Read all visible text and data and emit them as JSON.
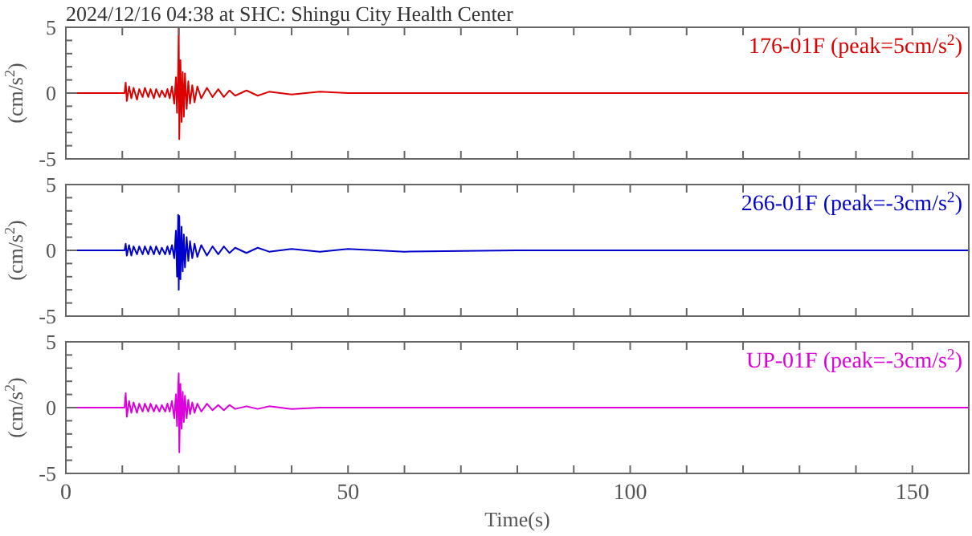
{
  "chart_data": [
    {
      "type": "line",
      "title": "2024/12/16 04:38 at SHC: Shingu City Health Center",
      "ylabel": "(cm/s$^{2}$)",
      "xlim": [
        0,
        160
      ],
      "xticks": [
        0,
        {
          "value": 10,
          "label": null
        },
        {
          "value": 20,
          "label": null
        },
        {
          "value": 30,
          "label": null
        },
        {
          "value": 40,
          "label": null
        },
        50,
        {
          "value": 60,
          "label": null
        },
        {
          "value": 70,
          "label": null
        },
        {
          "value": 80,
          "label": null
        },
        {
          "value": 90,
          "label": null
        },
        100,
        {
          "value": 110,
          "label": null
        },
        {
          "value": 120,
          "label": null
        },
        {
          "value": 130,
          "label": null
        },
        {
          "value": 140,
          "label": null
        },
        150,
        {
          "value": 160,
          "label": null
        }
      ],
      "ylim": [
        -5,
        5
      ],
      "yticks": [
        -5,
        {
          "value": -4,
          "label": null
        },
        {
          "value": -3,
          "label": null
        },
        {
          "value": -2,
          "label": null
        },
        {
          "value": -1,
          "label": null
        },
        0,
        {
          "value": 1,
          "label": null
        },
        {
          "value": 2,
          "label": null
        },
        {
          "value": 3,
          "label": null
        },
        {
          "value": 4,
          "label": null
        },
        5
      ],
      "tick_labels": "y",
      "legend": "top right",
      "marker": "none",
      "series": [
        {
          "name": "176-01F (peak=5cm/s$^{2}$)",
          "color": "#dd0000",
          "x": [
            0,
            10.4,
            10.6,
            10.8,
            11.2,
            11.6,
            12,
            12.6,
            13,
            13.6,
            14,
            14.6,
            15,
            15.6,
            16,
            16.6,
            17,
            17.6,
            18,
            18.4,
            18.8,
            19.2,
            19.5,
            19.7,
            19.9,
            20.0,
            20.1,
            20.3,
            20.5,
            20.7,
            20.9,
            21.1,
            21.4,
            21.7,
            22,
            22.4,
            22.8,
            23.3,
            24,
            25,
            26,
            27,
            28,
            29,
            30,
            32,
            34,
            36,
            40,
            45,
            50,
            60,
            80,
            100,
            130,
            160
          ],
          "values": [
            0,
            0,
            0.8,
            -0.6,
            0.5,
            -0.4,
            0.4,
            -0.5,
            0.3,
            -0.3,
            0.4,
            -0.3,
            0.3,
            -0.4,
            0.3,
            -0.3,
            0.2,
            -0.3,
            0.3,
            -0.4,
            0.5,
            -0.8,
            1.2,
            -1.5,
            1.8,
            5,
            -3.5,
            2.5,
            -2.2,
            1.6,
            -1.8,
            1.5,
            -1.2,
            0.9,
            -0.8,
            0.6,
            -0.7,
            0.5,
            -0.4,
            0.4,
            -0.3,
            0.3,
            -0.3,
            0.2,
            -0.2,
            0.2,
            -0.2,
            0.1,
            -0.1,
            0.1,
            0,
            0,
            0,
            0,
            0,
            0
          ]
        }
      ]
    },
    {
      "type": "line",
      "ylabel": "(cm/s$^{2}$)",
      "xlim": [
        0,
        160
      ],
      "xticks": [
        0,
        {
          "value": 10,
          "label": null
        },
        {
          "value": 20,
          "label": null
        },
        {
          "value": 30,
          "label": null
        },
        {
          "value": 40,
          "label": null
        },
        50,
        {
          "value": 60,
          "label": null
        },
        {
          "value": 70,
          "label": null
        },
        {
          "value": 80,
          "label": null
        },
        {
          "value": 90,
          "label": null
        },
        100,
        {
          "value": 110,
          "label": null
        },
        {
          "value": 120,
          "label": null
        },
        {
          "value": 130,
          "label": null
        },
        {
          "value": 140,
          "label": null
        },
        150,
        {
          "value": 160,
          "label": null
        }
      ],
      "ylim": [
        -5,
        5
      ],
      "yticks": [
        -5,
        {
          "value": -4,
          "label": null
        },
        {
          "value": -3,
          "label": null
        },
        {
          "value": -2,
          "label": null
        },
        {
          "value": -1,
          "label": null
        },
        0,
        {
          "value": 1,
          "label": null
        },
        {
          "value": 2,
          "label": null
        },
        {
          "value": 3,
          "label": null
        },
        {
          "value": 4,
          "label": null
        },
        5
      ],
      "tick_labels": "y",
      "legend": "top right",
      "marker": "none",
      "series": [
        {
          "name": "266-01F (peak=-3cm/s$^{2}$)",
          "color": "#0000cc",
          "x": [
            0,
            10.4,
            10.6,
            10.8,
            11.2,
            11.6,
            12,
            12.6,
            13,
            13.6,
            14,
            14.6,
            15,
            15.6,
            16,
            16.6,
            17,
            17.6,
            18,
            18.4,
            18.8,
            19.2,
            19.5,
            19.7,
            19.9,
            20.0,
            20.1,
            20.3,
            20.5,
            20.7,
            20.9,
            21.1,
            21.4,
            21.7,
            22,
            22.4,
            22.8,
            23.3,
            24,
            25,
            26,
            27,
            28,
            29,
            30,
            32,
            34,
            36,
            40,
            45,
            50,
            60,
            80,
            100,
            130,
            160
          ],
          "values": [
            0,
            0,
            0.5,
            -0.4,
            0.4,
            -0.4,
            0.3,
            -0.3,
            0.3,
            -0.3,
            0.3,
            -0.3,
            0.3,
            -0.3,
            0.3,
            -0.3,
            0.2,
            -0.3,
            0.3,
            -0.3,
            0.4,
            -0.6,
            1.5,
            -2,
            2.7,
            -3,
            2.6,
            -2.2,
            1.8,
            -1.6,
            1.2,
            -1.3,
            1,
            -0.8,
            0.7,
            -0.6,
            0.5,
            -0.5,
            0.4,
            -0.4,
            0.3,
            -0.3,
            0.3,
            -0.2,
            0.2,
            -0.2,
            0.2,
            -0.1,
            0.1,
            -0.1,
            0.1,
            -0.1,
            0,
            0,
            0,
            0
          ]
        }
      ]
    },
    {
      "type": "line",
      "ylabel": "(cm/s$^{2}$)",
      "xlabel": "Time(s)",
      "xlim": [
        0,
        160
      ],
      "xticks": [
        0,
        {
          "value": 10,
          "label": null
        },
        {
          "value": 20,
          "label": null
        },
        {
          "value": 30,
          "label": null
        },
        {
          "value": 40,
          "label": null
        },
        50,
        {
          "value": 60,
          "label": null
        },
        {
          "value": 70,
          "label": null
        },
        {
          "value": 80,
          "label": null
        },
        {
          "value": 90,
          "label": null
        },
        100,
        {
          "value": 110,
          "label": null
        },
        {
          "value": 120,
          "label": null
        },
        {
          "value": 130,
          "label": null
        },
        {
          "value": 140,
          "label": null
        },
        150,
        {
          "value": 160,
          "label": null
        }
      ],
      "ylim": [
        -5,
        5
      ],
      "yticks": [
        -5,
        {
          "value": -4,
          "label": null
        },
        {
          "value": -3,
          "label": null
        },
        {
          "value": -2,
          "label": null
        },
        {
          "value": -1,
          "label": null
        },
        0,
        {
          "value": 1,
          "label": null
        },
        {
          "value": 2,
          "label": null
        },
        {
          "value": 3,
          "label": null
        },
        {
          "value": 4,
          "label": null
        },
        5
      ],
      "legend": "top right",
      "marker": "none",
      "series": [
        {
          "name": "UP-01F (peak=-3cm/s$^{2}$)",
          "color": "#dd00dd",
          "x": [
            0,
            10.4,
            10.6,
            10.8,
            11.2,
            11.6,
            12,
            12.6,
            13,
            13.6,
            14,
            14.6,
            15,
            15.6,
            16,
            16.6,
            17,
            17.6,
            18,
            18.4,
            18.8,
            19.2,
            19.5,
            19.7,
            19.9,
            20.0,
            20.1,
            20.3,
            20.5,
            20.7,
            20.9,
            21.1,
            21.4,
            21.7,
            22,
            22.4,
            22.8,
            23.3,
            24,
            25,
            26,
            27,
            28,
            29,
            30,
            32,
            34,
            36,
            40,
            45,
            50,
            60,
            80,
            100,
            130,
            160
          ],
          "values": [
            0,
            0,
            1.1,
            -0.7,
            0.5,
            -0.4,
            0.4,
            -0.4,
            0.3,
            -0.3,
            0.3,
            -0.3,
            0.3,
            -0.3,
            0.2,
            -0.3,
            0.2,
            -0.3,
            0.3,
            -0.3,
            0.5,
            -0.8,
            1,
            -1.4,
            1.6,
            2.6,
            -3.4,
            1.8,
            -1.6,
            1.2,
            -1.1,
            0.9,
            -0.8,
            0.6,
            -0.5,
            0.4,
            -0.4,
            0.3,
            -0.3,
            0.3,
            -0.2,
            0.2,
            -0.2,
            0.2,
            -0.1,
            0.1,
            -0.1,
            0.1,
            -0.1,
            0,
            0,
            0,
            0,
            0,
            0,
            0
          ]
        }
      ]
    }
  ]
}
